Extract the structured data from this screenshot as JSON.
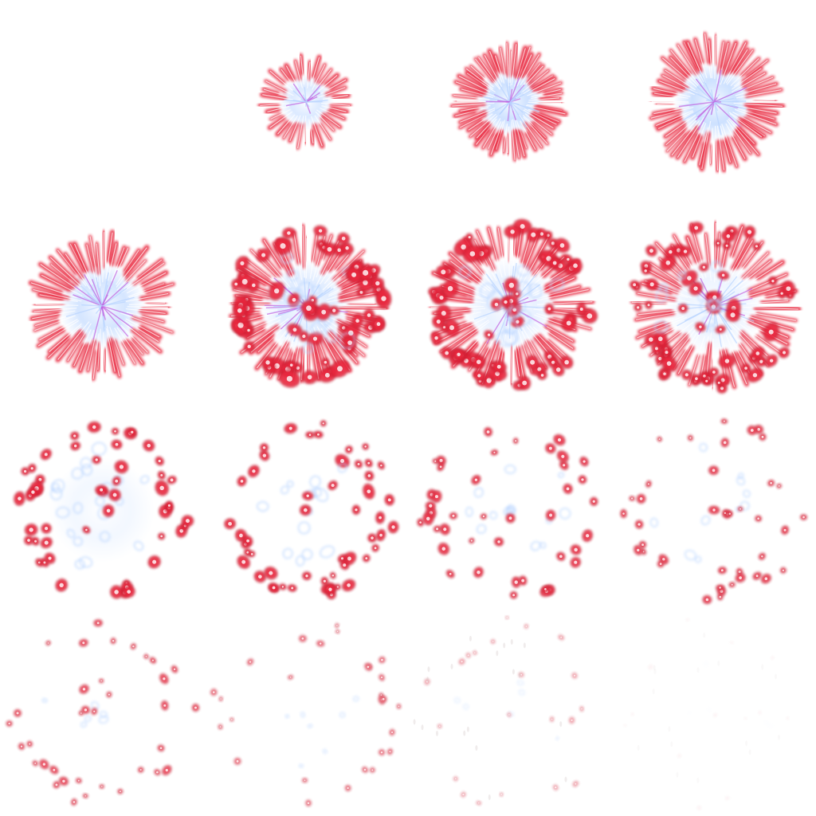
{
  "sprite_sheet": {
    "description_visible_text": "",
    "grid": {
      "columns": 4,
      "rows": 4
    },
    "colors": {
      "background": "#ffffff",
      "ember": "#e8283c",
      "ember_edge": "#b01428",
      "core": "#ffffff",
      "spark": "#b8d4ff",
      "spark_accent": "#c060e0",
      "smoke": "#a08888"
    },
    "frames": [
      {
        "id": 1,
        "stage": "empty",
        "radius": 0,
        "density": 0,
        "core": 0,
        "fade": 0
      },
      {
        "id": 2,
        "stage": "ignite",
        "radius": 58,
        "density": 0.55,
        "core": 0.7,
        "fade": 1
      },
      {
        "id": 3,
        "stage": "expand",
        "radius": 72,
        "density": 1.0,
        "core": 1.0,
        "fade": 1
      },
      {
        "id": 4,
        "stage": "expand",
        "radius": 84,
        "density": 1.0,
        "core": 1.0,
        "fade": 1
      },
      {
        "id": 5,
        "stage": "peak",
        "radius": 92,
        "density": 1.0,
        "core": 0.85,
        "fade": 1
      },
      {
        "id": 6,
        "stage": "peak",
        "radius": 98,
        "density": 1.0,
        "core": 0.6,
        "fade": 1
      },
      {
        "id": 7,
        "stage": "break",
        "radius": 102,
        "density": 0.95,
        "core": 0.45,
        "fade": 1
      },
      {
        "id": 8,
        "stage": "break",
        "radius": 106,
        "density": 0.9,
        "core": 0.35,
        "fade": 1
      },
      {
        "id": 9,
        "stage": "scatter",
        "radius": 110,
        "density": 0.8,
        "core": 0.25,
        "fade": 1
      },
      {
        "id": 10,
        "stage": "scatter",
        "radius": 112,
        "density": 0.72,
        "core": 0.2,
        "fade": 1
      },
      {
        "id": 11,
        "stage": "scatter",
        "radius": 114,
        "density": 0.62,
        "core": 0.15,
        "fade": 0.95
      },
      {
        "id": 12,
        "stage": "scatter",
        "radius": 116,
        "density": 0.55,
        "core": 0.12,
        "fade": 0.9
      },
      {
        "id": 13,
        "stage": "embers",
        "radius": 118,
        "density": 0.45,
        "core": 0.08,
        "fade": 0.85
      },
      {
        "id": 14,
        "stage": "embers",
        "radius": 120,
        "density": 0.38,
        "core": 0.05,
        "fade": 0.7
      },
      {
        "id": 15,
        "stage": "fading",
        "radius": 122,
        "density": 0.3,
        "core": 0.03,
        "fade": 0.45
      },
      {
        "id": 16,
        "stage": "smoke",
        "radius": 124,
        "density": 0.2,
        "core": 0,
        "fade": 0.15
      }
    ]
  }
}
